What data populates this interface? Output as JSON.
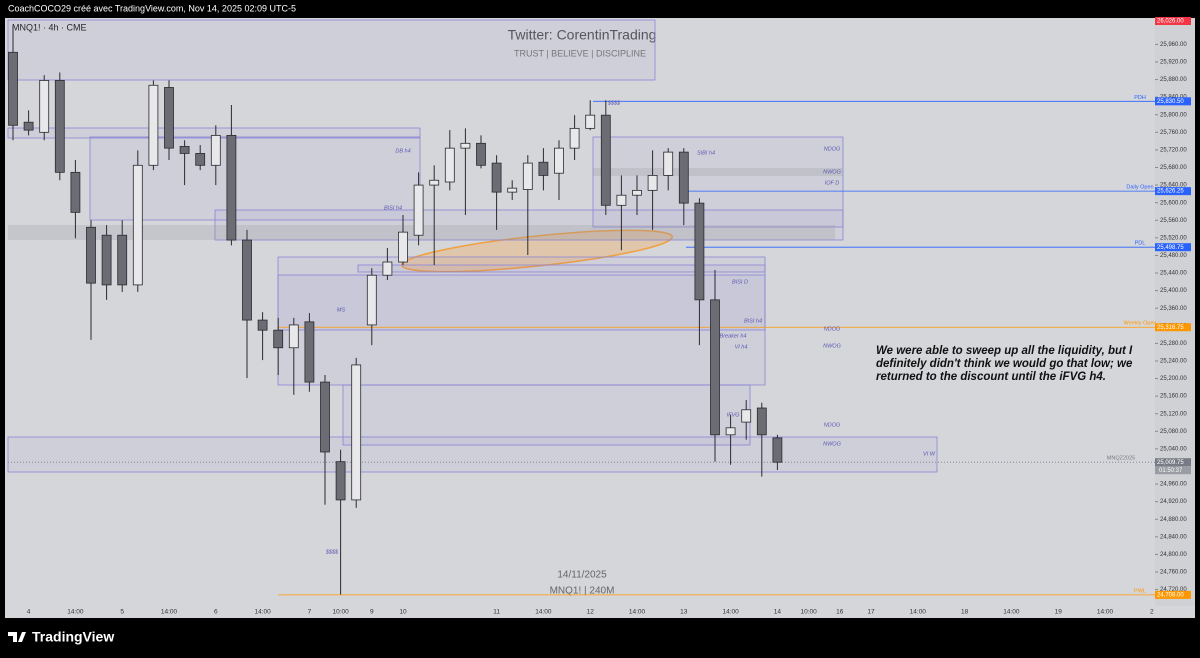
{
  "header": "CoachCOCO29 créé avec TradingView.com, Nov 14, 2025 02:09 UTC-5",
  "footer": "TradingView",
  "chart_data": {
    "type": "candlestick",
    "symbol": "MNQ1! · 4h · CME",
    "watermark": [
      "Twitter: CorentinTrading",
      "TRUST  |  BELIEVE  |  DISCIPLINE"
    ],
    "center_labels": [
      "14/11/2025",
      "MNQ1! | 240M"
    ],
    "annotation": "We were able to sweep up all the liquidity, but I definitely didn't think we would go that low; we returned to the discount until the iFVG h4.",
    "up_color": "#e8e8ea",
    "down_color": "#6c6c75",
    "candles": [
      {
        "open": 25942,
        "high": 26003,
        "low": 25742,
        "close": 25776
      },
      {
        "open": 25783,
        "high": 25810,
        "low": 25753,
        "close": 25765
      },
      {
        "open": 25760,
        "high": 25890,
        "low": 25742,
        "close": 25878
      },
      {
        "open": 25878,
        "high": 25896,
        "low": 25651,
        "close": 25669
      },
      {
        "open": 25669,
        "high": 25697,
        "low": 25519,
        "close": 25578
      },
      {
        "open": 25544,
        "high": 25560,
        "low": 25288,
        "close": 25417
      },
      {
        "open": 25526,
        "high": 25549,
        "low": 25379,
        "close": 25413
      },
      {
        "open": 25526,
        "high": 25560,
        "low": 25397,
        "close": 25413
      },
      {
        "open": 25413,
        "high": 25719,
        "low": 25397,
        "close": 25685
      },
      {
        "open": 25685,
        "high": 25878,
        "low": 25674,
        "close": 25867
      },
      {
        "open": 25862,
        "high": 25878,
        "low": 25697,
        "close": 25724
      },
      {
        "open": 25728,
        "high": 25742,
        "low": 25640,
        "close": 25712
      },
      {
        "open": 25712,
        "high": 25731,
        "low": 25674,
        "close": 25685
      },
      {
        "open": 25685,
        "high": 25776,
        "low": 25640,
        "close": 25753
      },
      {
        "open": 25753,
        "high": 25822,
        "low": 25503,
        "close": 25515
      },
      {
        "open": 25515,
        "high": 25538,
        "low": 25201,
        "close": 25333
      },
      {
        "open": 25333,
        "high": 25351,
        "low": 25242,
        "close": 25310
      },
      {
        "open": 25310,
        "high": 25338,
        "low": 25208,
        "close": 25270
      },
      {
        "open": 25270,
        "high": 25338,
        "low": 25163,
        "close": 25322
      },
      {
        "open": 25329,
        "high": 25349,
        "low": 25170,
        "close": 25192
      },
      {
        "open": 25192,
        "high": 25208,
        "low": 24913,
        "close": 25033
      },
      {
        "open": 25011,
        "high": 25038,
        "low": 24709,
        "close": 24924
      },
      {
        "open": 24924,
        "high": 25247,
        "low": 24906,
        "close": 25231
      },
      {
        "open": 25322,
        "high": 25451,
        "low": 25276,
        "close": 25435
      },
      {
        "open": 25435,
        "high": 25497,
        "low": 25424,
        "close": 25465
      },
      {
        "open": 25465,
        "high": 25572,
        "low": 25458,
        "close": 25533
      },
      {
        "open": 25526,
        "high": 25669,
        "low": 25503,
        "close": 25640
      },
      {
        "open": 25640,
        "high": 25685,
        "low": 25458,
        "close": 25651
      },
      {
        "open": 25647,
        "high": 25765,
        "low": 25628,
        "close": 25724
      },
      {
        "open": 25724,
        "high": 25769,
        "low": 25572,
        "close": 25735
      },
      {
        "open": 25735,
        "high": 25753,
        "low": 25678,
        "close": 25685
      },
      {
        "open": 25690,
        "high": 25708,
        "low": 25538,
        "close": 25624
      },
      {
        "open": 25624,
        "high": 25651,
        "low": 25606,
        "close": 25633
      },
      {
        "open": 25630,
        "high": 25708,
        "low": 25481,
        "close": 25690
      },
      {
        "open": 25692,
        "high": 25724,
        "low": 25628,
        "close": 25662
      },
      {
        "open": 25667,
        "high": 25742,
        "low": 25606,
        "close": 25724
      },
      {
        "open": 25724,
        "high": 25799,
        "low": 25697,
        "close": 25769
      },
      {
        "open": 25769,
        "high": 25833,
        "low": 25765,
        "close": 25799
      },
      {
        "open": 25799,
        "high": 25833,
        "low": 25572,
        "close": 25594
      },
      {
        "open": 25594,
        "high": 25662,
        "low": 25492,
        "close": 25617
      },
      {
        "open": 25617,
        "high": 25662,
        "low": 25572,
        "close": 25628
      },
      {
        "open": 25628,
        "high": 25719,
        "low": 25538,
        "close": 25662
      },
      {
        "open": 25662,
        "high": 25724,
        "low": 25628,
        "close": 25715
      },
      {
        "open": 25715,
        "high": 25724,
        "low": 25549,
        "close": 25599
      },
      {
        "open": 25599,
        "high": 25610,
        "low": 25276,
        "close": 25379
      },
      {
        "open": 25379,
        "high": 25447,
        "low": 25011,
        "close": 25072
      },
      {
        "open": 25072,
        "high": 25117,
        "low": 25004,
        "close": 25088
      },
      {
        "open": 25101,
        "high": 25151,
        "low": 25061,
        "close": 25129
      },
      {
        "open": 25133,
        "high": 25145,
        "low": 24977,
        "close": 25072
      },
      {
        "open": 25065,
        "high": 25072,
        "low": 24992,
        "close": 25009.75
      }
    ],
    "ylim": [
      24685,
      26020
    ],
    "yticks": [
      {
        "value": 25960,
        "label": "25,960.00"
      },
      {
        "value": 25920,
        "label": "25,920.00"
      },
      {
        "value": 25880,
        "label": "25,880.00"
      },
      {
        "value": 25840,
        "label": "25,840.00"
      },
      {
        "value": 25800,
        "label": "25,800.00"
      },
      {
        "value": 25760,
        "label": "25,760.00"
      },
      {
        "value": 25720,
        "label": "25,720.00"
      },
      {
        "value": 25680,
        "label": "25,680.00"
      },
      {
        "value": 25640,
        "label": "25,640.00"
      },
      {
        "value": 25600,
        "label": "25,600.00"
      },
      {
        "value": 25560,
        "label": "25,560.00"
      },
      {
        "value": 25520,
        "label": "25,520.00"
      },
      {
        "value": 25480,
        "label": "25,480.00"
      },
      {
        "value": 25440,
        "label": "25,440.00"
      },
      {
        "value": 25400,
        "label": "25,400.00"
      },
      {
        "value": 25360,
        "label": "25,360.00"
      },
      {
        "value": 25320,
        "label": "25,320.00"
      },
      {
        "value": 25280,
        "label": "25,280.00"
      },
      {
        "value": 25240,
        "label": "25,240.00"
      },
      {
        "value": 25200,
        "label": "25,200.00"
      },
      {
        "value": 25160,
        "label": "25,160.00"
      },
      {
        "value": 25120,
        "label": "25,120.00"
      },
      {
        "value": 25080,
        "label": "25,080.00"
      },
      {
        "value": 25040,
        "label": "25,040.00"
      },
      {
        "value": 25000,
        "label": "25,000.00"
      },
      {
        "value": 24960,
        "label": "24,960.00"
      },
      {
        "value": 24920,
        "label": "24,920.00"
      },
      {
        "value": 24880,
        "label": "24,880.00"
      },
      {
        "value": 24840,
        "label": "24,840.00"
      },
      {
        "value": 24800,
        "label": "24,800.00"
      },
      {
        "value": 24760,
        "label": "24,760.00"
      },
      {
        "value": 24720,
        "label": "24,720.00"
      }
    ],
    "xticks": [
      "4",
      "14:00",
      "5",
      "14:00",
      "6",
      "14:00",
      "7",
      "10:00",
      "9",
      "10",
      "11",
      "14:00",
      "12",
      "14:00",
      "13",
      "14:00",
      "14",
      "10:00",
      "16",
      "17",
      "14:00",
      "18",
      "14:00",
      "19",
      "14:00",
      "2"
    ],
    "levels": [
      {
        "value": 26026,
        "label": "26,026.00",
        "color": "#f23645"
      },
      {
        "name": "PDH",
        "value": 25830.5,
        "label": "25,830.50",
        "color": "#2962ff"
      },
      {
        "name": "Daily Open",
        "value": 25626.25,
        "label": "25,626.25",
        "color": "#2962ff"
      },
      {
        "name": "PDL",
        "value": 25498.75,
        "label": "25,498.75",
        "color": "#2962ff"
      },
      {
        "name": "Weekly Open",
        "value": 25316.75,
        "label": "25,316.75",
        "color": "#ff9800"
      },
      {
        "name": "MNQZ2025",
        "value": 25009.75,
        "label": "25,009.75",
        "countdown": "01:50:37",
        "color": "#787b86"
      },
      {
        "name": "PWL",
        "value": 24708,
        "label": "24,708.00",
        "color": "#ff9800"
      }
    ],
    "zone_labels": [
      "DB h4",
      "BISI h4",
      "SIBI h4",
      "BISI D",
      "BISI h4",
      "Breaker h4",
      "VI h4",
      "IFVG h4",
      "VI W",
      "MS",
      "$$$$",
      "$$$$",
      "NDOG",
      "NWOG",
      "IOF D",
      "NDOG",
      "NWOG",
      "NDOG",
      "NWOG"
    ]
  }
}
